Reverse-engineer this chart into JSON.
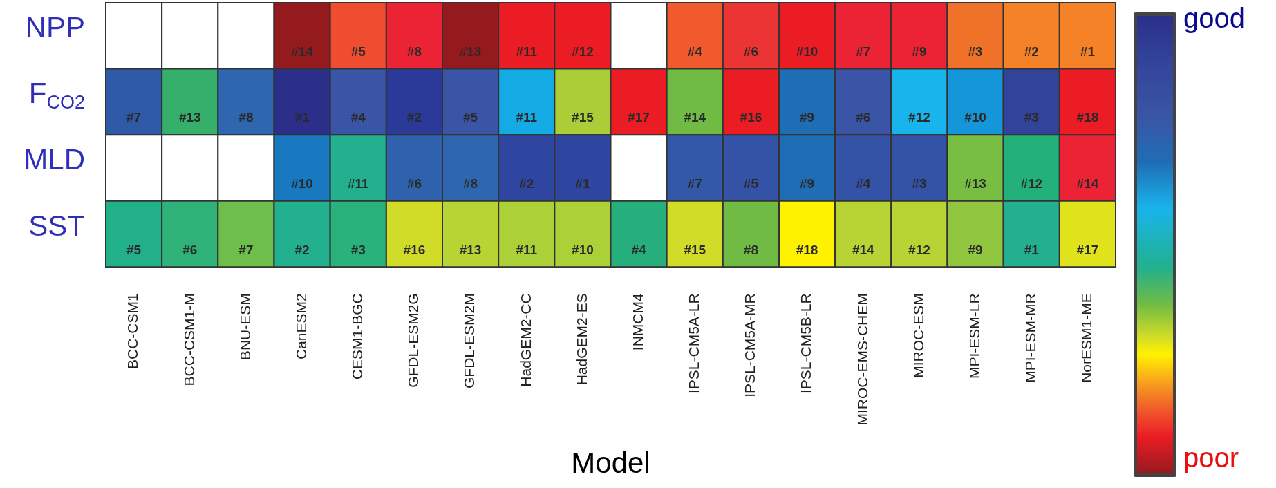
{
  "chart_data": {
    "type": "heatmap",
    "xlabel": "Model",
    "categories": [
      "BCC-CSM1",
      "BCC-CSM1-M",
      "BNU-ESM",
      "CanESM2",
      "CESM1-BGC",
      "GFDL-ESM2G",
      "GFDL-ESM2M",
      "HadGEM2-CC",
      "HadGEM2-ES",
      "INMCM4",
      "IPSL-CM5A-LR",
      "IPSL-CM5A-MR",
      "IPSL-CM5B-LR",
      "MIROC-EMS-CHEM",
      "MIROC-ESM",
      "MPI-ESM-LR",
      "MPI-ESM-MR",
      "NorESM1-ME"
    ],
    "y_categories": [
      "NPP",
      "F$_{CO2}$",
      "MLD",
      "SST"
    ],
    "cells": [
      [
        null,
        null,
        null,
        14,
        5,
        8,
        13,
        11,
        12,
        null,
        4,
        6,
        10,
        7,
        9,
        3,
        2,
        1
      ],
      [
        7,
        13,
        8,
        1,
        4,
        2,
        5,
        11,
        15,
        17,
        14,
        16,
        9,
        6,
        12,
        10,
        3,
        18
      ],
      [
        null,
        null,
        null,
        10,
        11,
        6,
        8,
        2,
        1,
        null,
        7,
        5,
        9,
        4,
        3,
        13,
        12,
        14
      ],
      [
        5,
        6,
        7,
        2,
        3,
        16,
        13,
        11,
        10,
        4,
        15,
        8,
        18,
        14,
        12,
        9,
        1,
        17
      ]
    ],
    "cell_labels": [
      [
        null,
        null,
        null,
        "#14",
        "#5",
        "#8",
        "#13",
        "#11",
        "#12",
        null,
        "#4",
        "#6",
        "#10",
        "#7",
        "#9",
        "#3",
        "#2",
        "#1"
      ],
      [
        "#7",
        "#13",
        "#8",
        "#1",
        "#4",
        "#2",
        "#5",
        "#11",
        "#15",
        "#17",
        "#14",
        "#16",
        "#9",
        "#6",
        "#12",
        "#10",
        "#3",
        "#18"
      ],
      [
        null,
        null,
        null,
        "#10",
        "#11",
        "#6",
        "#8",
        "#2",
        "#1",
        null,
        "#7",
        "#5",
        "#9",
        "#4",
        "#3",
        "#13",
        "#12",
        "#14"
      ],
      [
        "#5",
        "#6",
        "#7",
        "#2",
        "#3",
        "#16",
        "#13",
        "#11",
        "#10",
        "#4",
        "#15",
        "#8",
        "#18",
        "#14",
        "#12",
        "#9",
        "#1",
        "#17"
      ]
    ],
    "colors": [
      [
        null,
        null,
        null,
        "#951a1e",
        "#ef4c30",
        "#ec2334",
        "#951a1e",
        "#ec1c24",
        "#ec1c24",
        null,
        "#f05a2c",
        "#ec3434",
        "#ec1c24",
        "#ec2334",
        "#ec2334",
        "#f07228",
        "#f58226",
        "#f58226"
      ],
      [
        "#2e5aa8",
        "#34b06a",
        "#2e66b0",
        "#2b2f8a",
        "#3a55a6",
        "#2b3a98",
        "#3a55a6",
        "#14aae4",
        "#aacd38",
        "#ec1c24",
        "#70bb44",
        "#ec1c24",
        "#1f6db4",
        "#3a55a6",
        "#18b4ec",
        "#1496d8",
        "#32449a",
        "#ec1c24"
      ],
      [
        null,
        null,
        null,
        "#1878c0",
        "#22b08e",
        "#2e62ac",
        "#2e66b0",
        "#2f46a0",
        "#2f46a0",
        null,
        "#3458a8",
        "#3452a6",
        "#1f6db4",
        "#3452a6",
        "#3452a6",
        "#78be42",
        "#24b07a",
        "#ec2334"
      ],
      [
        "#22b08a",
        "#2fb278",
        "#6dbe4a",
        "#22b08e",
        "#2ab27c",
        "#d0dc28",
        "#b8d434",
        "#acd038",
        "#acd038",
        "#26ae7c",
        "#d0dc28",
        "#70bb44",
        "#fff200",
        "#b8d434",
        "#b8d434",
        "#90c640",
        "#22b08e",
        "#e0e21c"
      ]
    ],
    "annotations": [
      "good",
      "poor"
    ]
  }
}
